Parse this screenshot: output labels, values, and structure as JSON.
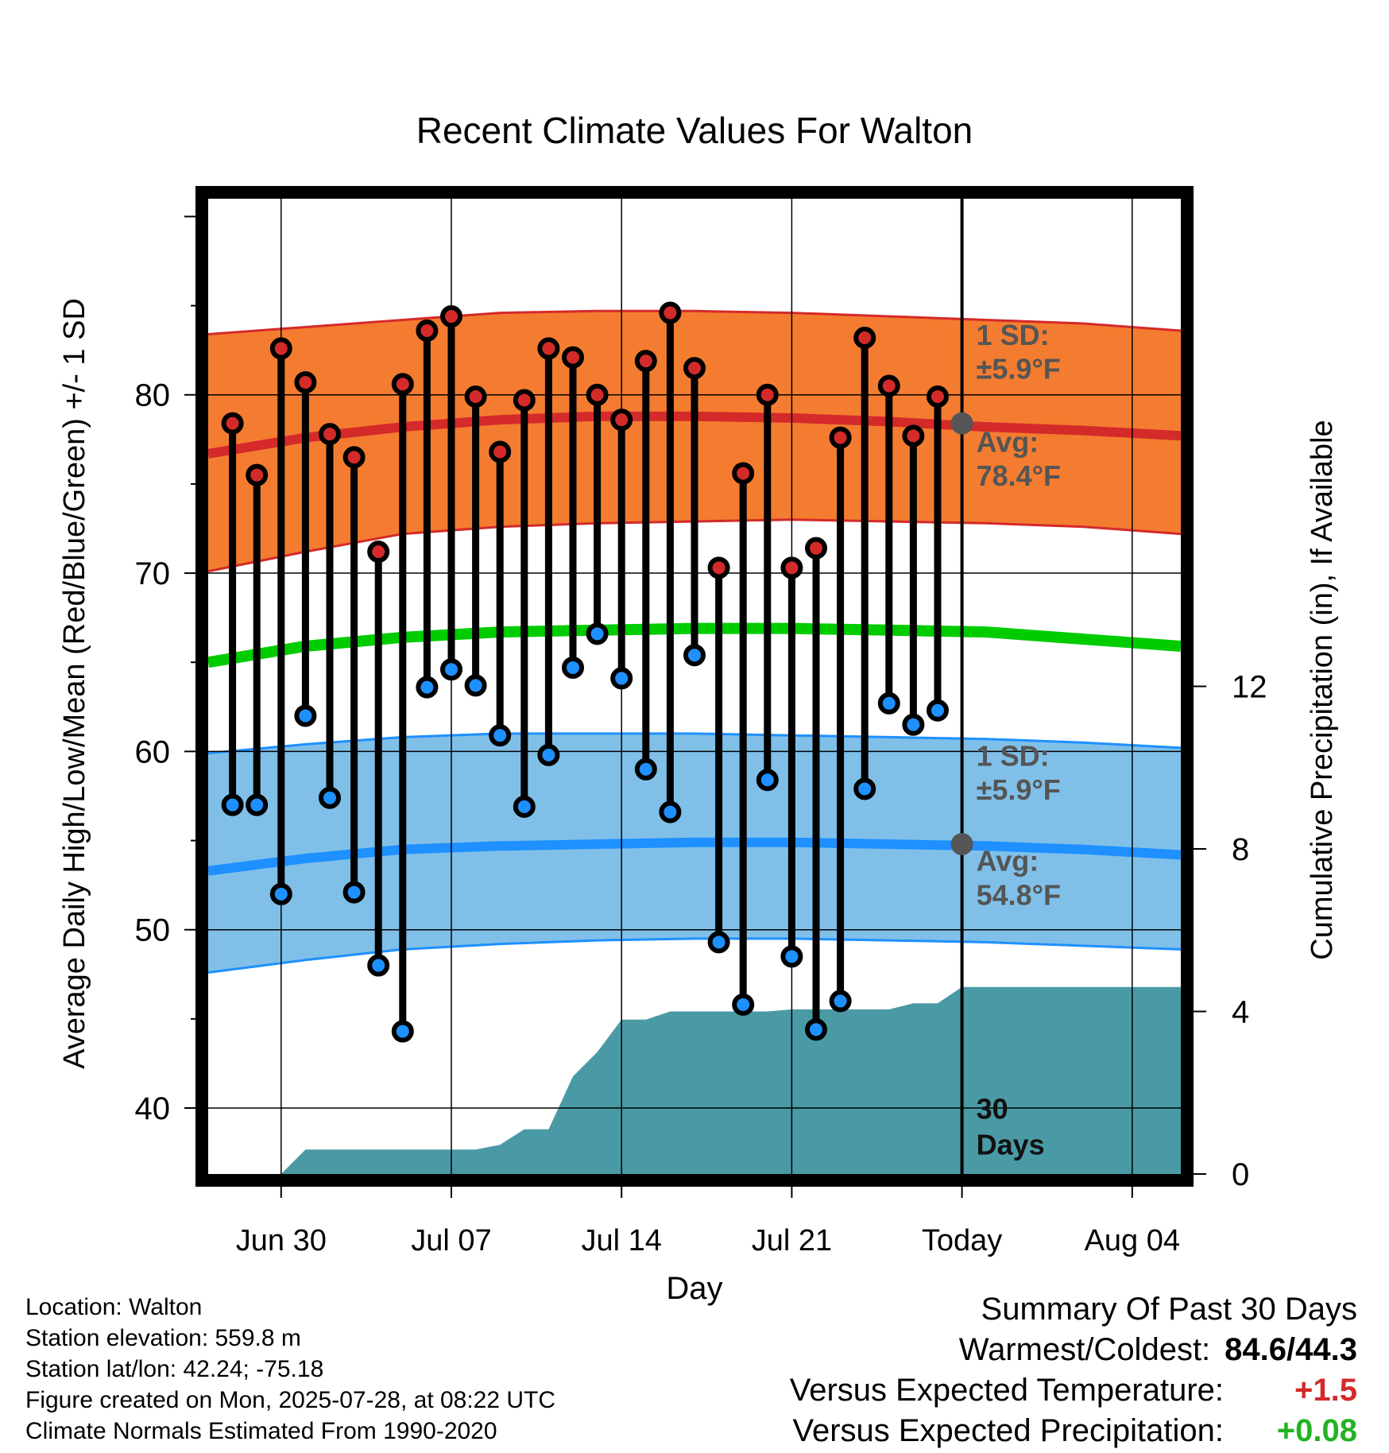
{
  "chart_data": {
    "type": "line",
    "title": "Recent Climate Values For Walton",
    "xlabel": "Day",
    "ylabel": "Average Daily High/Low/Mean (Red/Blue/Green) +/- 1 SD",
    "y2label": "Cumulative Precipitation (in), If Available",
    "ylim": [
      36.3,
      91
    ],
    "y2lim": [
      0,
      24
    ],
    "yticks": [
      40,
      50,
      60,
      70,
      80
    ],
    "y2ticks": [
      0,
      4,
      8,
      12
    ],
    "xticks": [
      {
        "day": 3,
        "label": "Jun 30"
      },
      {
        "day": 10,
        "label": "Jul 07"
      },
      {
        "day": 17,
        "label": "Jul 14"
      },
      {
        "day": 24,
        "label": "Jul 21"
      },
      {
        "day": 31,
        "label": "Today"
      },
      {
        "day": 38,
        "label": "Aug 04"
      }
    ],
    "daily_high": [
      78.4,
      75.5,
      82.6,
      80.7,
      77.8,
      76.5,
      71.2,
      80.6,
      83.6,
      84.4,
      79.9,
      76.8,
      79.7,
      82.6,
      82.1,
      80.0,
      78.6,
      81.9,
      84.6,
      81.5,
      70.3,
      75.6,
      80.0,
      70.3,
      71.4,
      77.6,
      83.2,
      80.5,
      77.7,
      79.9
    ],
    "daily_low": [
      57.0,
      57.0,
      52.0,
      62.0,
      57.4,
      52.1,
      48.0,
      44.3,
      63.6,
      64.6,
      63.7,
      60.9,
      56.9,
      59.8,
      64.7,
      66.6,
      64.1,
      59.0,
      56.6,
      65.4,
      49.3,
      45.8,
      58.4,
      48.5,
      44.4,
      46.0,
      57.9,
      62.7,
      61.5,
      62.3
    ],
    "high_normal": {
      "days": [
        0,
        4,
        8,
        12,
        16,
        20,
        24,
        28,
        32,
        36,
        40
      ],
      "mean": [
        76.7,
        77.6,
        78.2,
        78.6,
        78.8,
        78.8,
        78.7,
        78.5,
        78.2,
        78.0,
        77.7
      ],
      "upper": [
        83.4,
        83.8,
        84.2,
        84.6,
        84.7,
        84.7,
        84.6,
        84.4,
        84.2,
        84.0,
        83.6
      ],
      "lower": [
        70.1,
        71.2,
        72.2,
        72.6,
        72.8,
        72.9,
        73.0,
        72.9,
        72.8,
        72.6,
        72.2
      ]
    },
    "mean_normal": {
      "days": [
        0,
        4,
        8,
        12,
        16,
        20,
        24,
        28,
        32,
        36,
        40
      ],
      "values": [
        65.0,
        65.9,
        66.4,
        66.7,
        66.8,
        66.9,
        66.9,
        66.8,
        66.7,
        66.3,
        65.9
      ]
    },
    "low_normal": {
      "days": [
        0,
        4,
        8,
        12,
        16,
        20,
        24,
        28,
        32,
        36,
        40
      ],
      "mean": [
        53.3,
        54.0,
        54.5,
        54.7,
        54.8,
        54.9,
        54.9,
        54.8,
        54.7,
        54.5,
        54.2
      ],
      "upper": [
        59.9,
        60.4,
        60.8,
        61.0,
        61.0,
        61.0,
        60.9,
        60.8,
        60.7,
        60.5,
        60.2
      ],
      "lower": [
        47.6,
        48.3,
        48.9,
        49.2,
        49.4,
        49.5,
        49.5,
        49.4,
        49.3,
        49.1,
        48.9
      ]
    },
    "precipitation": {
      "days": [
        3,
        4,
        5,
        6,
        7,
        8,
        9,
        10,
        11,
        12,
        13,
        14,
        15,
        16,
        17,
        18,
        19,
        20,
        21,
        22,
        23,
        24,
        25,
        26,
        27,
        28,
        29,
        30,
        31,
        40
      ],
      "values": [
        0.0,
        0.6,
        0.6,
        0.6,
        0.6,
        0.6,
        0.6,
        0.6,
        0.6,
        0.72,
        1.1,
        1.1,
        2.4,
        3.0,
        3.8,
        3.8,
        4.0,
        4.0,
        4.0,
        4.0,
        4.0,
        4.05,
        4.05,
        4.05,
        4.05,
        4.05,
        4.2,
        4.2,
        4.6,
        4.6
      ]
    },
    "today_day": 31,
    "annotations": {
      "high_sd": "1 SD:",
      "high_sd_value": "±5.9°F",
      "high_avg": "Avg:",
      "high_avg_value": "78.4°F",
      "low_sd": "1 SD:",
      "low_sd_value": "±5.9°F",
      "low_avg": "Avg:",
      "low_avg_value": "54.8°F",
      "days_number": "30",
      "days_word": "Days"
    },
    "colors": {
      "high_band": "#f47c30",
      "high_line": "#d42a2a",
      "low_band": "#80c0e8",
      "low_line": "#1e90ff",
      "mean_line": "#00cc00",
      "precip_fill": "#4a9aa5",
      "high_dot": "#d42a2a",
      "low_dot": "#1e90ff",
      "marker_grey": "#555555"
    }
  },
  "footer": {
    "location": "Location: Walton",
    "elevation": "Station elevation: 559.8 m",
    "latlon": "Station lat/lon: 42.24; -75.18",
    "created": "Figure created on Mon, 2025-07-28, at 08:22 UTC",
    "normals": "Climate Normals Estimated From 1990-2020"
  },
  "summary": {
    "title": "Summary Of Past 30 Days",
    "warm_cold_label": "Warmest/Coldest:",
    "warm_cold_value": "84.6/44.3",
    "temp_label": "Versus Expected Temperature:",
    "temp_value": "+1.5",
    "temp_color": "#d42a2a",
    "precip_label": "Versus Expected Precipitation:",
    "precip_value": "+0.08",
    "precip_color": "#22b322"
  }
}
